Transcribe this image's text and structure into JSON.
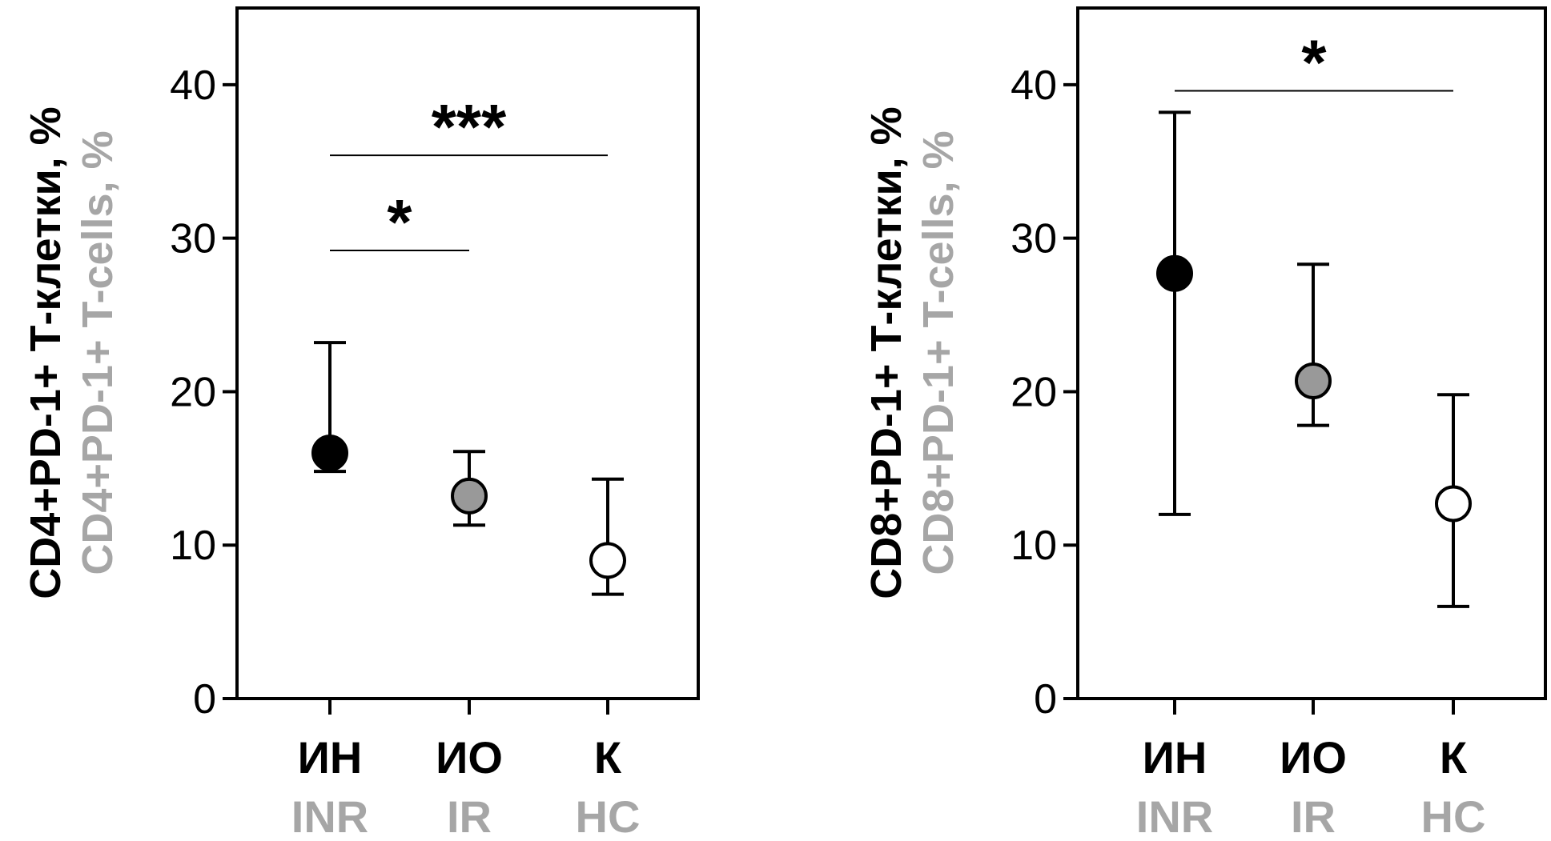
{
  "chart_data": [
    {
      "type": "scatter",
      "title": "",
      "ylabel_ru": "CD4+PD-1+ Т-клетки, %",
      "ylabel_en": "CD4+PD-1+ T-cells, %",
      "ylim": [
        0,
        45
      ],
      "yticks": [
        0,
        10,
        20,
        30,
        40
      ],
      "categories": [
        {
          "ru": "ИН",
          "en": "INR",
          "fill": "#000000"
        },
        {
          "ru": "ИО",
          "en": "IR",
          "fill": "#999999"
        },
        {
          "ru": "К",
          "en": "HC",
          "fill": "#ffffff"
        }
      ],
      "points": [
        {
          "value": 16,
          "low": 14.8,
          "high": 23.2
        },
        {
          "value": 13.2,
          "low": 11.3,
          "high": 16.1
        },
        {
          "value": 9,
          "low": 6.8,
          "high": 14.3
        }
      ],
      "significance": [
        {
          "from": 0,
          "to": 1,
          "y": 29.2,
          "label": "*"
        },
        {
          "from": 0,
          "to": 2,
          "y": 35.4,
          "label": "***"
        }
      ]
    },
    {
      "type": "scatter",
      "title": "",
      "ylabel_ru": "CD8+PD-1+ Т-клетки, %",
      "ylabel_en": "CD8+PD-1+ T-cells, %",
      "ylim": [
        0,
        45
      ],
      "yticks": [
        0,
        10,
        20,
        30,
        40
      ],
      "categories": [
        {
          "ru": "ИН",
          "en": "INR",
          "fill": "#000000"
        },
        {
          "ru": "ИО",
          "en": "IR",
          "fill": "#999999"
        },
        {
          "ru": "К",
          "en": "HC",
          "fill": "#ffffff"
        }
      ],
      "points": [
        {
          "value": 27.7,
          "low": 12,
          "high": 38.2
        },
        {
          "value": 20.7,
          "low": 17.8,
          "high": 28.3
        },
        {
          "value": 12.7,
          "low": 6,
          "high": 19.8
        }
      ],
      "significance": [
        {
          "from": 0,
          "to": 2,
          "y": 39.6,
          "label": "*"
        }
      ]
    }
  ]
}
